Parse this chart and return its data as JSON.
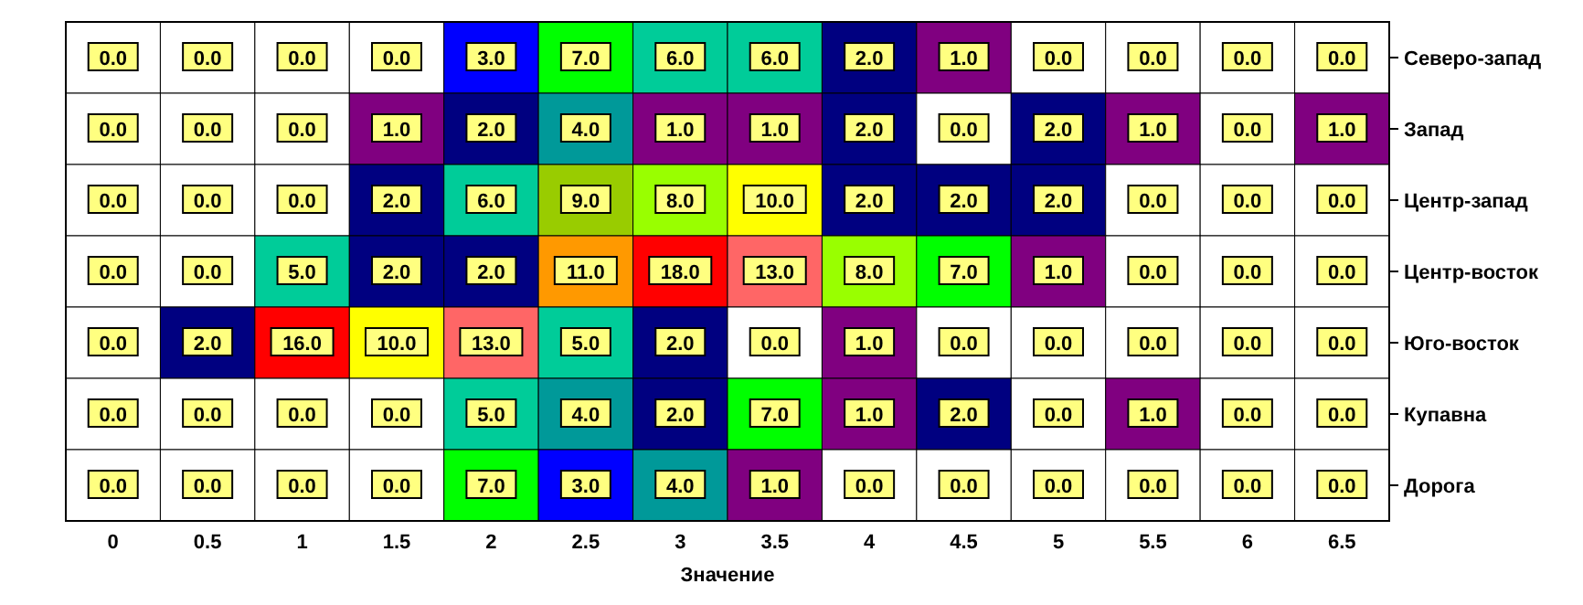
{
  "chart_data": {
    "type": "heatmap",
    "xlabel": "Значение",
    "categories": [
      "0",
      "0.5",
      "1",
      "1.5",
      "2",
      "2.5",
      "3",
      "3.5",
      "4",
      "4.5",
      "5",
      "5.5",
      "6",
      "6.5"
    ],
    "y_categories": [
      "Северо-запад",
      "Запад",
      "Центр-запад",
      "Центр-восток",
      "Юго-восток",
      "Купавна",
      "Дорога"
    ],
    "cells": [
      [
        0,
        0,
        0,
        0,
        3,
        7,
        6,
        6,
        2,
        1,
        0,
        0,
        0,
        0
      ],
      [
        0,
        0,
        0,
        1,
        2,
        4,
        1,
        1,
        2,
        0,
        2,
        1,
        0,
        1
      ],
      [
        0,
        0,
        0,
        2,
        6,
        9,
        8,
        10,
        2,
        2,
        2,
        0,
        0,
        0
      ],
      [
        0,
        0,
        5,
        2,
        2,
        11,
        18,
        13,
        8,
        7,
        1,
        0,
        0,
        0
      ],
      [
        0,
        2,
        16,
        10,
        13,
        5,
        2,
        0,
        1,
        0,
        0,
        0,
        0,
        0
      ],
      [
        0,
        0,
        0,
        0,
        5,
        4,
        2,
        7,
        1,
        2,
        0,
        1,
        0,
        0
      ],
      [
        0,
        0,
        0,
        0,
        7,
        3,
        4,
        1,
        0,
        0,
        0,
        0,
        0,
        0
      ]
    ],
    "cell_labels": [
      [
        "0.0",
        "0.0",
        "0.0",
        "0.0",
        "3.0",
        "7.0",
        "6.0",
        "6.0",
        "2.0",
        "1.0",
        "0.0",
        "0.0",
        "0.0",
        "0.0"
      ],
      [
        "0.0",
        "0.0",
        "0.0",
        "1.0",
        "2.0",
        "4.0",
        "1.0",
        "1.0",
        "2.0",
        "0.0",
        "2.0",
        "1.0",
        "0.0",
        "1.0"
      ],
      [
        "0.0",
        "0.0",
        "0.0",
        "2.0",
        "6.0",
        "9.0",
        "8.0",
        "10.0",
        "2.0",
        "2.0",
        "2.0",
        "0.0",
        "0.0",
        "0.0"
      ],
      [
        "0.0",
        "0.0",
        "5.0",
        "2.0",
        "2.0",
        "11.0",
        "18.0",
        "13.0",
        "8.0",
        "7.0",
        "1.0",
        "0.0",
        "0.0",
        "0.0"
      ],
      [
        "0.0",
        "2.0",
        "16.0",
        "10.0",
        "13.0",
        "5.0",
        "2.0",
        "0.0",
        "1.0",
        "0.0",
        "0.0",
        "0.0",
        "0.0",
        "0.0"
      ],
      [
        "0.0",
        "0.0",
        "0.0",
        "0.0",
        "5.0",
        "4.0",
        "2.0",
        "7.0",
        "1.0",
        "2.0",
        "0.0",
        "1.0",
        "0.0",
        "0.0"
      ],
      [
        "0.0",
        "0.0",
        "0.0",
        "0.0",
        "7.0",
        "3.0",
        "4.0",
        "1.0",
        "0.0",
        "0.0",
        "0.0",
        "0.0",
        "0.0",
        "0.0"
      ]
    ],
    "colors": [
      [
        "#ffffff",
        "#ffffff",
        "#ffffff",
        "#ffffff",
        "#0000ff",
        "#00ff00",
        "#00cc99",
        "#00cc99",
        "#000080",
        "#800080",
        "#ffffff",
        "#ffffff",
        "#ffffff",
        "#ffffff"
      ],
      [
        "#ffffff",
        "#ffffff",
        "#ffffff",
        "#800080",
        "#000080",
        "#009999",
        "#800080",
        "#800080",
        "#000080",
        "#ffffff",
        "#000080",
        "#800080",
        "#ffffff",
        "#800080"
      ],
      [
        "#ffffff",
        "#ffffff",
        "#ffffff",
        "#000080",
        "#00cc99",
        "#99cc00",
        "#99ff00",
        "#ffff00",
        "#000080",
        "#000080",
        "#000080",
        "#ffffff",
        "#ffffff",
        "#ffffff"
      ],
      [
        "#ffffff",
        "#ffffff",
        "#00cc99",
        "#000080",
        "#000080",
        "#ff9900",
        "#ff0000",
        "#ff6666",
        "#99ff00",
        "#00ff00",
        "#800080",
        "#ffffff",
        "#ffffff",
        "#ffffff"
      ],
      [
        "#ffffff",
        "#000080",
        "#ff0000",
        "#ffff00",
        "#ff6666",
        "#00cc99",
        "#000080",
        "#ffffff",
        "#800080",
        "#ffffff",
        "#ffffff",
        "#ffffff",
        "#ffffff",
        "#ffffff"
      ],
      [
        "#ffffff",
        "#ffffff",
        "#ffffff",
        "#ffffff",
        "#00cc99",
        "#009999",
        "#000080",
        "#00ff00",
        "#800080",
        "#000080",
        "#ffffff",
        "#800080",
        "#ffffff",
        "#ffffff"
      ],
      [
        "#ffffff",
        "#ffffff",
        "#ffffff",
        "#ffffff",
        "#00ff00",
        "#0000ff",
        "#009999",
        "#800080",
        "#ffffff",
        "#ffffff",
        "#ffffff",
        "#ffffff",
        "#ffffff",
        "#ffffff"
      ]
    ]
  }
}
